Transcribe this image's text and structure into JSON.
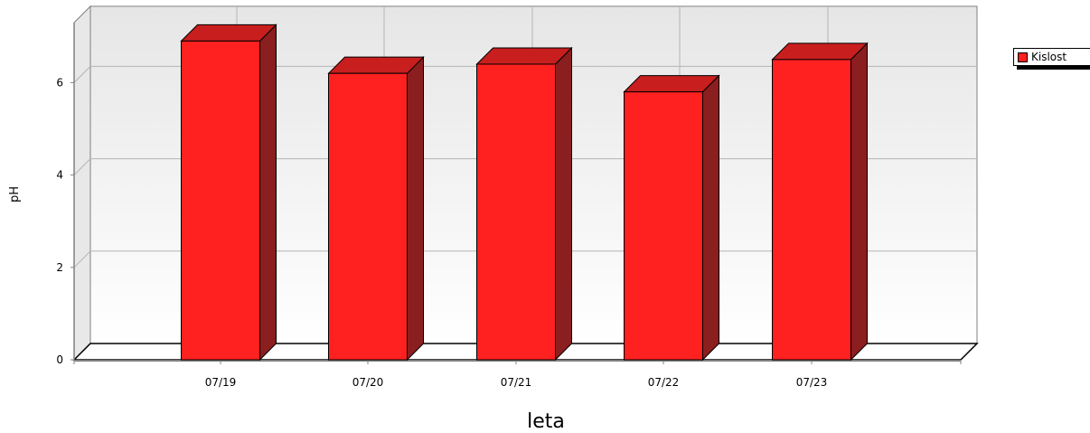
{
  "chart_data": {
    "type": "bar",
    "title": "",
    "xlabel": "leta",
    "ylabel": "pH",
    "categories": [
      "07/19",
      "07/20",
      "07/21",
      "07/22",
      "07/23"
    ],
    "series": [
      {
        "name": "Kislost",
        "values": [
          6.9,
          6.2,
          6.4,
          5.8,
          6.5
        ],
        "color": "#ff2020"
      }
    ],
    "ylim": [
      0,
      7.3
    ],
    "yticks": [
      0,
      2,
      4,
      6
    ],
    "grid": true,
    "legend_position": "top-right",
    "style": "3d"
  }
}
